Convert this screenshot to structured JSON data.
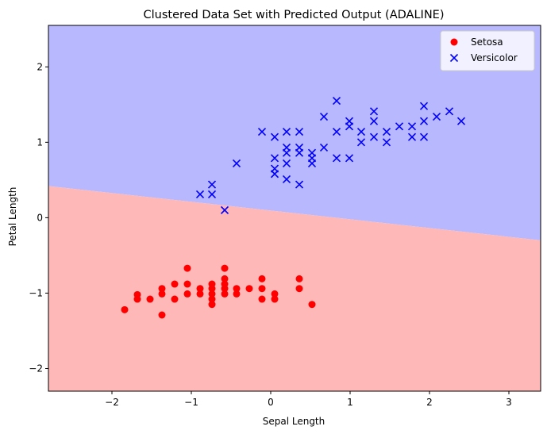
{
  "chart_data": {
    "type": "scatter",
    "title": "Clustered Data Set with Predicted Output (ADALINE)",
    "xlabel": "Sepal Length",
    "ylabel": "Petal Length",
    "xlim": [
      -2.8,
      3.4
    ],
    "ylim": [
      -2.3,
      2.55
    ],
    "xticks": [
      -2,
      -1,
      0,
      1,
      2,
      3
    ],
    "yticks": [
      -2,
      -1,
      0,
      1,
      2
    ],
    "grid": false,
    "legend_position": "top-right",
    "decision_regions": {
      "boundary_line": {
        "x": [
          -2.8,
          3.4
        ],
        "y": [
          0.42,
          -0.3
        ]
      },
      "upper_color": "#b8b8ff",
      "lower_color": "#ffb8b8"
    },
    "series": [
      {
        "name": "Setosa",
        "marker": "circle",
        "color": "#ff0000",
        "points": [
          [
            -1.84,
            -1.22
          ],
          [
            -1.68,
            -1.02
          ],
          [
            -1.68,
            -1.08
          ],
          [
            -1.52,
            -1.08
          ],
          [
            -1.37,
            -0.94
          ],
          [
            -1.37,
            -1.01
          ],
          [
            -1.37,
            -1.29
          ],
          [
            -1.21,
            -0.88
          ],
          [
            -1.21,
            -1.08
          ],
          [
            -1.05,
            -0.67
          ],
          [
            -1.05,
            -0.88
          ],
          [
            -1.05,
            -1.01
          ],
          [
            -0.89,
            -0.94
          ],
          [
            -0.89,
            -1.01
          ],
          [
            -0.74,
            -0.88
          ],
          [
            -0.74,
            -0.94
          ],
          [
            -0.74,
            -1.01
          ],
          [
            -0.74,
            -1.08
          ],
          [
            -0.74,
            -1.15
          ],
          [
            -0.58,
            -0.67
          ],
          [
            -0.58,
            -0.81
          ],
          [
            -0.58,
            -0.88
          ],
          [
            -0.58,
            -0.94
          ],
          [
            -0.58,
            -1.01
          ],
          [
            -0.43,
            -0.94
          ],
          [
            -0.43,
            -1.01
          ],
          [
            -0.27,
            -0.94
          ],
          [
            -0.11,
            -0.81
          ],
          [
            -0.11,
            -0.94
          ],
          [
            -0.11,
            -1.08
          ],
          [
            0.05,
            -1.01
          ],
          [
            0.05,
            -1.08
          ],
          [
            0.36,
            -0.81
          ],
          [
            0.36,
            -0.94
          ],
          [
            0.52,
            -1.15
          ]
        ]
      },
      {
        "name": "Versicolor",
        "marker": "x",
        "color": "#0000ff",
        "points": [
          [
            -0.89,
            0.31
          ],
          [
            -0.74,
            0.31
          ],
          [
            -0.74,
            0.44
          ],
          [
            -0.58,
            0.1
          ],
          [
            -0.43,
            0.72
          ],
          [
            -0.11,
            1.14
          ],
          [
            0.05,
            0.58
          ],
          [
            0.05,
            0.65
          ],
          [
            0.05,
            0.79
          ],
          [
            0.05,
            1.07
          ],
          [
            0.2,
            0.51
          ],
          [
            0.2,
            0.72
          ],
          [
            0.2,
            0.86
          ],
          [
            0.2,
            0.93
          ],
          [
            0.2,
            1.14
          ],
          [
            0.36,
            0.44
          ],
          [
            0.36,
            0.86
          ],
          [
            0.36,
            0.93
          ],
          [
            0.36,
            1.14
          ],
          [
            0.52,
            0.72
          ],
          [
            0.52,
            0.79
          ],
          [
            0.52,
            0.86
          ],
          [
            0.67,
            0.93
          ],
          [
            0.67,
            1.34
          ],
          [
            0.83,
            0.79
          ],
          [
            0.83,
            1.14
          ],
          [
            0.83,
            1.55
          ],
          [
            0.99,
            0.79
          ],
          [
            0.99,
            1.21
          ],
          [
            0.99,
            1.28
          ],
          [
            1.14,
            1.0
          ],
          [
            1.14,
            1.14
          ],
          [
            1.3,
            1.07
          ],
          [
            1.3,
            1.28
          ],
          [
            1.3,
            1.41
          ],
          [
            1.46,
            1.0
          ],
          [
            1.46,
            1.14
          ],
          [
            1.62,
            1.21
          ],
          [
            1.78,
            1.07
          ],
          [
            1.78,
            1.21
          ],
          [
            1.93,
            1.07
          ],
          [
            1.93,
            1.28
          ],
          [
            1.93,
            1.48
          ],
          [
            2.09,
            1.34
          ],
          [
            2.25,
            1.41
          ],
          [
            2.4,
            1.28
          ]
        ]
      }
    ]
  }
}
